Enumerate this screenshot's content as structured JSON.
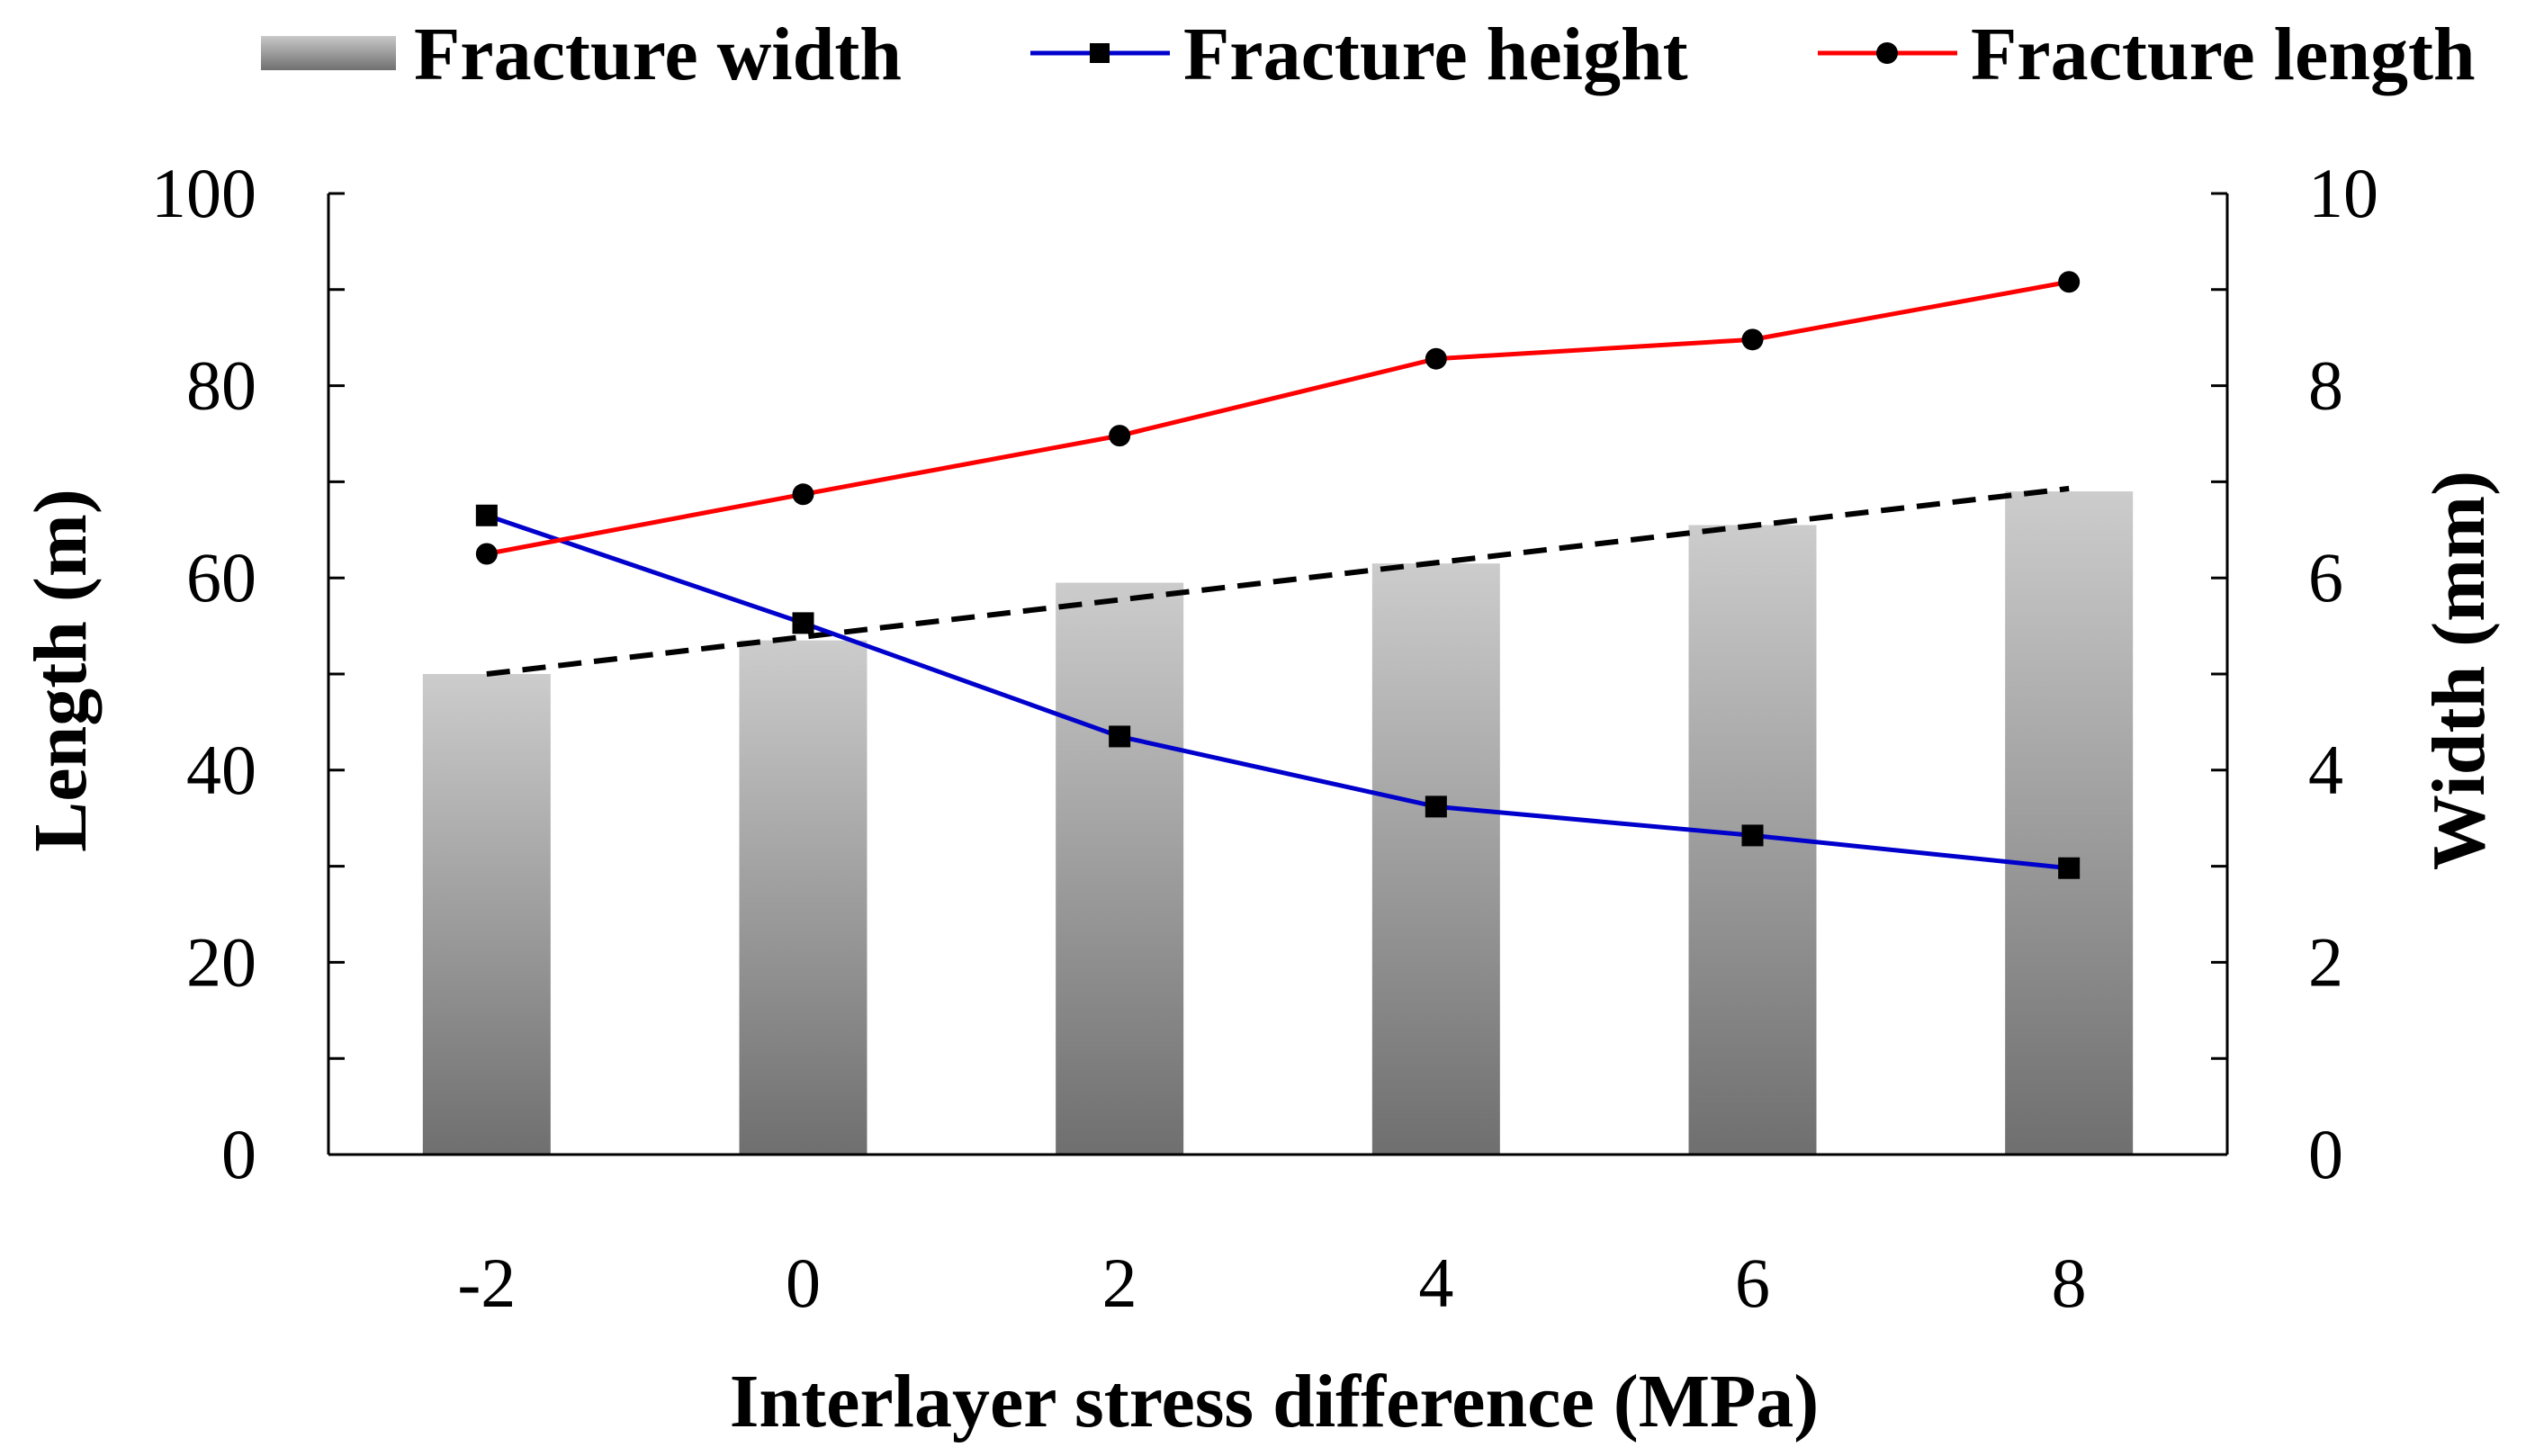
{
  "chart_data": {
    "type": "bar-line-combo",
    "categories": [
      "-2",
      "0",
      "2",
      "4",
      "6",
      "8"
    ],
    "x_values": [
      -2,
      0,
      2,
      4,
      6,
      8
    ],
    "xlabel": "Interlayer stress difference (MPa)",
    "ylabel_left": "Length (m)",
    "ylabel_right": "Width (mm)",
    "ylim_left": [
      0,
      100
    ],
    "ylim_right": [
      0,
      10
    ],
    "yticks_left": [
      "0",
      "20",
      "40",
      "60",
      "80",
      "100"
    ],
    "yticks_right": [
      "0",
      "2",
      "4",
      "6",
      "8",
      "10"
    ],
    "series": [
      {
        "name": "Fracture width",
        "kind": "bar",
        "axis": "right",
        "values": [
          5.0,
          5.35,
          5.95,
          6.15,
          6.55,
          6.9
        ]
      },
      {
        "name": "Fracture height",
        "kind": "line",
        "axis": "left",
        "marker": "square",
        "color": "#0000CC",
        "values": [
          66.5,
          55.3,
          43.5,
          36.2,
          33.2,
          29.8
        ]
      },
      {
        "name": "Fracture length",
        "kind": "line",
        "axis": "left",
        "marker": "circle",
        "color": "#FF0000",
        "values": [
          62.5,
          68.7,
          74.8,
          82.8,
          84.8,
          90.8
        ]
      }
    ],
    "trendline": {
      "of": "Fracture width",
      "axis": "right",
      "style": "dashed",
      "color": "#000000",
      "start": 5.0,
      "end": 6.93
    },
    "legend": [
      "Fracture width",
      "Fracture height",
      "Fracture length"
    ],
    "legend_position": "top",
    "grid": false
  }
}
